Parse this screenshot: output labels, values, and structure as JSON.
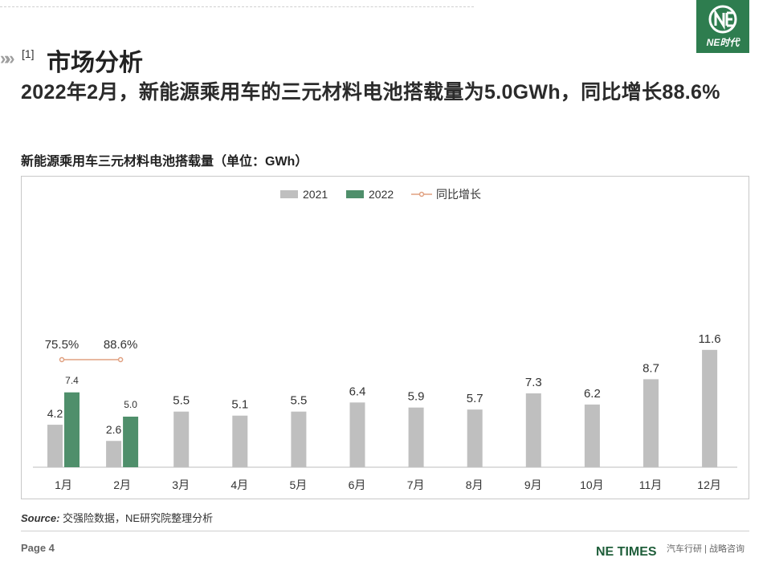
{
  "header": {
    "section_number": "[1]",
    "section_title": "市场分析",
    "headline": "2022年2月，新能源乘用车的三元材料电池搭载量为5.0GWh，同比增长88.6%",
    "logo_text": "NE时代"
  },
  "chart_data": {
    "type": "bar",
    "title": "新能源乘用车三元材料电池搭载量（单位：GWh）",
    "categories": [
      "1月",
      "2月",
      "3月",
      "4月",
      "5月",
      "6月",
      "7月",
      "8月",
      "9月",
      "10月",
      "11月",
      "12月"
    ],
    "series": [
      {
        "name": "2021",
        "values": [
          4.2,
          2.6,
          5.5,
          5.1,
          5.5,
          6.4,
          5.9,
          5.7,
          7.3,
          6.2,
          8.7,
          11.6
        ],
        "color": "#bfbfbf"
      },
      {
        "name": "2022",
        "values": [
          7.4,
          5.0,
          null,
          null,
          null,
          null,
          null,
          null,
          null,
          null,
          null,
          null
        ],
        "color": "#4f8f6b"
      }
    ],
    "line_series": {
      "name": "同比增长",
      "values": [
        "75.5%",
        "88.6%",
        null,
        null,
        null,
        null,
        null,
        null,
        null,
        null,
        null,
        null
      ],
      "color": "#e0a080"
    },
    "legend_position": "top-center",
    "grid": false
  },
  "footer": {
    "source_label": "Source:",
    "source_text": "交强险数据，NE研究院整理分析",
    "page": "Page 4",
    "brand": "NE TIMES",
    "brand_sub": "汽车行研 | 战略咨询"
  }
}
